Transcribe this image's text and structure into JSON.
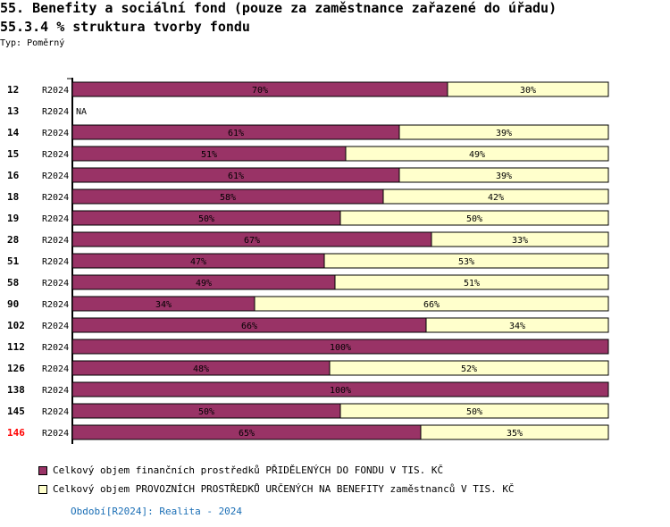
{
  "title": "55. Benefity a sociální fond (pouze za zaměstnance zařazené do úřadu)",
  "subtitle": "55.3.4 % struktura tvorby fondu",
  "type_label": "Typ: Poměrný",
  "colors": {
    "s1": "#993366",
    "s2": "#ffffcc",
    "highlight": "#ff0000"
  },
  "chart_data": {
    "type": "bar",
    "stacked": true,
    "orientation": "horizontal",
    "xlim": [
      0,
      100
    ],
    "categories": [
      "12",
      "13",
      "14",
      "15",
      "16",
      "18",
      "19",
      "28",
      "51",
      "58",
      "90",
      "102",
      "112",
      "126",
      "138",
      "145",
      "146"
    ],
    "highlighted": "146",
    "period": "R2024",
    "na_label": "NA",
    "series": [
      {
        "name": "Celkový objem finančních prostředků PŘIDĚLENÝCH DO FONDU V TIS. KČ",
        "values": [
          70,
          null,
          61,
          51,
          61,
          58,
          50,
          67,
          47,
          49,
          34,
          66,
          100,
          48,
          100,
          50,
          65
        ]
      },
      {
        "name": "Celkový objem PROVOZNÍCH PROSTŘEDKŮ URČENÝCH NA BENEFITY zaměstnanců V TIS. KČ",
        "values": [
          30,
          null,
          39,
          49,
          39,
          42,
          50,
          33,
          53,
          51,
          66,
          34,
          0,
          52,
          0,
          50,
          35
        ]
      }
    ]
  },
  "period_note": "Období[R2024]: Realita - 2024"
}
